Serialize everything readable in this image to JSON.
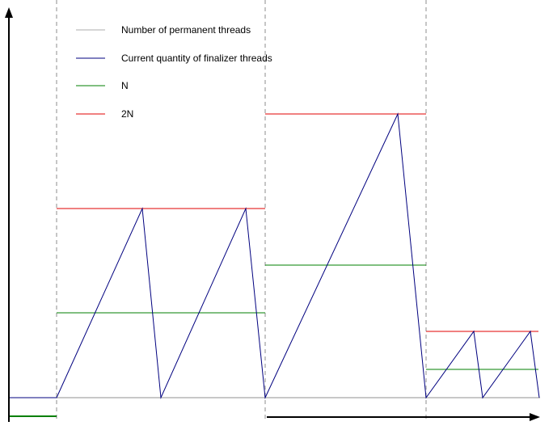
{
  "legend": [
    {
      "label": "Number of permanent threads",
      "color": "#c8c8c8"
    },
    {
      "label": "Current quantity of finalizer threads",
      "color": "#00007f"
    },
    {
      "label": "N",
      "color": "#007f00"
    },
    {
      "label": "2N",
      "color": "#e00000"
    }
  ],
  "colors": {
    "axis": "#000000",
    "divider": "#b4b4b4",
    "permanent": "#c8c8c8",
    "current": "#00007f",
    "n_line": "#007f00",
    "two_n_line": "#e00000"
  }
}
